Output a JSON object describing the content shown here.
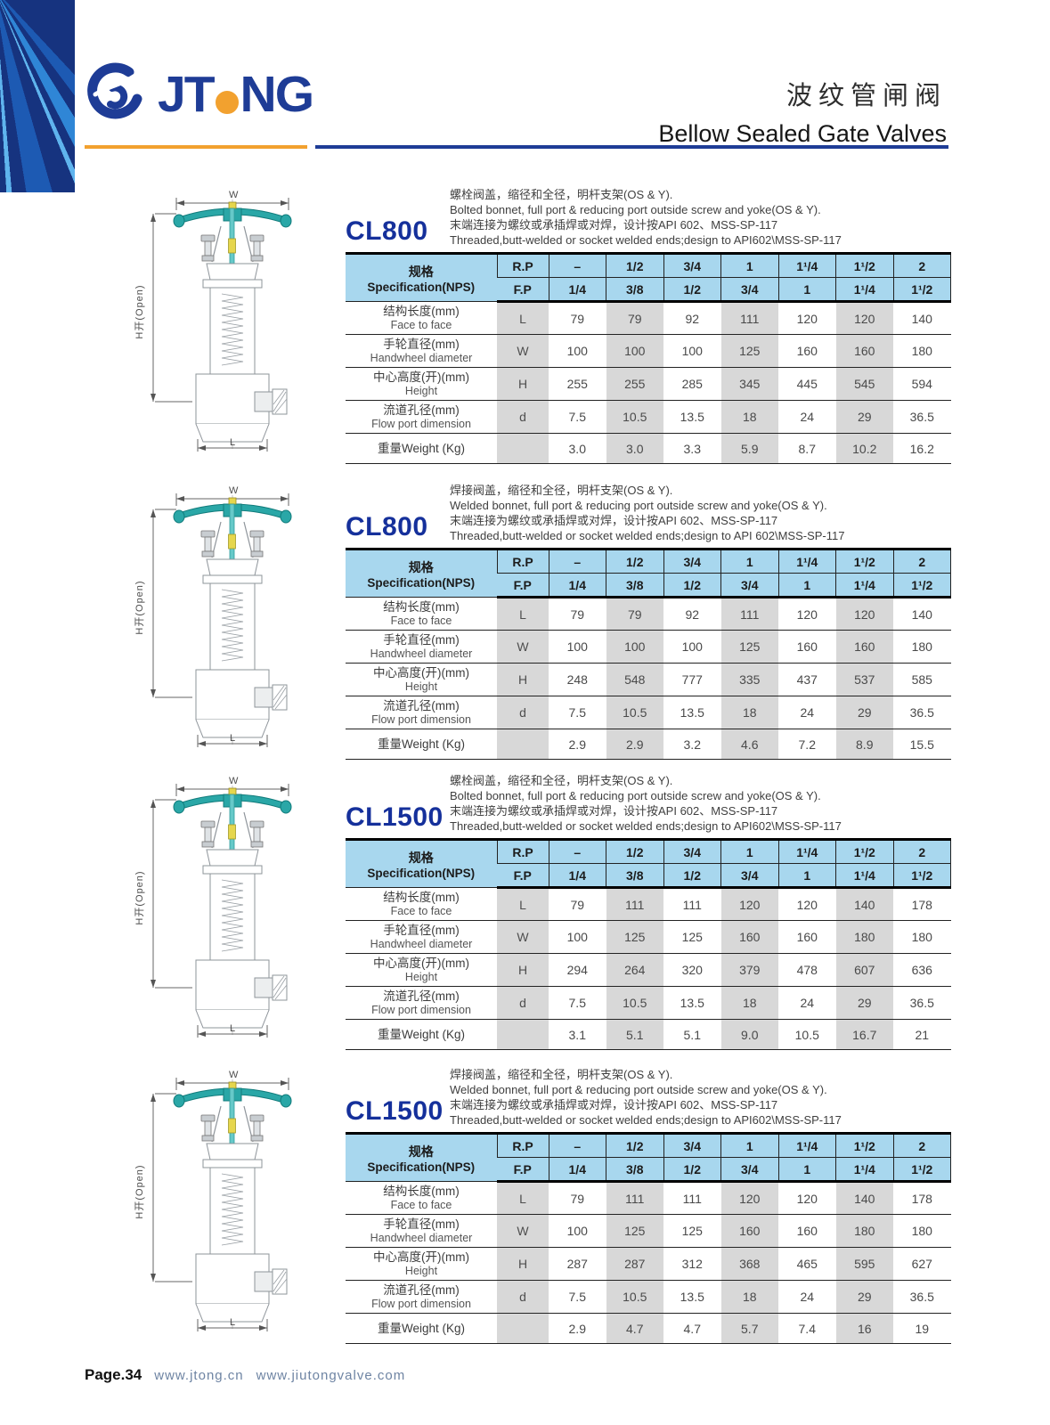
{
  "page": {
    "brand": "JTONG",
    "brand_left": "JT",
    "brand_right": "NG",
    "title_zh": "波纹管闸阀",
    "title_en": "Bellow Sealed Gate Valves",
    "footer": {
      "page_label": "Page.34",
      "url_1": "www.jtong.cn",
      "url_2": "www.jiutongvalve.com"
    }
  },
  "colors": {
    "brand_blue": "#1e3c96",
    "accent_orange": "#f2a12f",
    "table_header_blue": "#a8d7ee",
    "column_shade_gray": "#d8d8d8",
    "handwheel_teal": "#2aa7a7"
  },
  "diagram_labels": {
    "top": "W",
    "left": "H开(Open)",
    "bottom": "L"
  },
  "table_header": {
    "spec_label_zh": "规格",
    "spec_label_en": "Specification(NPS)",
    "rp_label": "R.P",
    "fp_label": "F.P",
    "rp_values": [
      "–",
      "1/2",
      "3/4",
      "1",
      "1¹/4",
      "1¹/2",
      "2"
    ],
    "fp_values": [
      "1/4",
      "3/8",
      "1/2",
      "3/4",
      "1",
      "1¹/4",
      "1¹/2"
    ]
  },
  "row_labels": [
    {
      "zh": "结构长度(mm)",
      "en": "Face to face",
      "sym": "L"
    },
    {
      "zh": "手轮直径(mm)",
      "en": "Handwheel diameter",
      "sym": "W"
    },
    {
      "zh": "中心高度(开)(mm)",
      "en": "Height",
      "sym": "H"
    },
    {
      "zh": "流道孔径(mm)",
      "en": "Flow port dimension",
      "sym": "d"
    },
    {
      "zh": "重量Weight (Kg)",
      "en": "",
      "sym": ""
    }
  ],
  "sections": [
    {
      "model": "CL800",
      "desc": [
        "螺栓阀盖，缩径和全径，明杆支架(OS & Y).",
        "Bolted bonnet, full port & reducing port outside screw and yoke(OS & Y).",
        "末端连接为螺纹或承插焊或对焊，设计按API 602、MSS-SP-117",
        "Threaded,butt-welded or socket welded ends;design to API602\\MSS-SP-117"
      ],
      "rows": [
        [
          "79",
          "79",
          "92",
          "111",
          "120",
          "120",
          "140"
        ],
        [
          "100",
          "100",
          "100",
          "125",
          "160",
          "160",
          "180"
        ],
        [
          "255",
          "255",
          "285",
          "345",
          "445",
          "545",
          "594"
        ],
        [
          "7.5",
          "10.5",
          "13.5",
          "18",
          "24",
          "29",
          "36.5"
        ],
        [
          "3.0",
          "3.0",
          "3.3",
          "5.9",
          "8.7",
          "10.2",
          "16.2"
        ]
      ]
    },
    {
      "model": "CL800",
      "desc": [
        "焊接阀盖，缩径和全径，明杆支架(OS & Y).",
        "Welded bonnet, full port & reducing port outside screw and yoke(OS & Y).",
        "末端连接为螺纹或承插焊或对焊，设计按API 602、MSS-SP-117",
        "Threaded,butt-welded or socket welded ends;design to API 602\\MSS-SP-117"
      ],
      "rows": [
        [
          "79",
          "79",
          "92",
          "111",
          "120",
          "120",
          "140"
        ],
        [
          "100",
          "100",
          "100",
          "125",
          "160",
          "160",
          "180"
        ],
        [
          "248",
          "548",
          "777",
          "335",
          "437",
          "537",
          "585"
        ],
        [
          "7.5",
          "10.5",
          "13.5",
          "18",
          "24",
          "29",
          "36.5"
        ],
        [
          "2.9",
          "2.9",
          "3.2",
          "4.6",
          "7.2",
          "8.9",
          "15.5"
        ]
      ]
    },
    {
      "model": "CL1500",
      "desc": [
        "螺栓阀盖，缩径和全径，明杆支架(OS & Y).",
        "Bolted bonnet, full port & reducing port outside screw and yoke(OS & Y).",
        "末端连接为螺纹或承插焊或对焊，设计按API 602、MSS-SP-117",
        "Threaded,butt-welded or socket welded ends;design to API602\\MSS-SP-117"
      ],
      "rows": [
        [
          "79",
          "111",
          "111",
          "120",
          "120",
          "140",
          "178"
        ],
        [
          "100",
          "125",
          "125",
          "160",
          "160",
          "180",
          "180"
        ],
        [
          "294",
          "264",
          "320",
          "379",
          "478",
          "607",
          "636"
        ],
        [
          "7.5",
          "10.5",
          "13.5",
          "18",
          "24",
          "29",
          "36.5"
        ],
        [
          "3.1",
          "5.1",
          "5.1",
          "9.0",
          "10.5",
          "16.7",
          "21"
        ]
      ]
    },
    {
      "model": "CL1500",
      "desc": [
        "焊接阀盖，缩径和全径，明杆支架(OS & Y).",
        "Welded bonnet, full port & reducing port outside screw and yoke(OS & Y).",
        "末端连接为螺纹或承插焊或对焊，设计按API 602、MSS-SP-117",
        "Threaded,butt-welded or socket welded ends;design to API602\\MSS-SP-117"
      ],
      "rows": [
        [
          "79",
          "111",
          "111",
          "120",
          "120",
          "140",
          "178"
        ],
        [
          "100",
          "125",
          "125",
          "160",
          "160",
          "180",
          "180"
        ],
        [
          "287",
          "287",
          "312",
          "368",
          "465",
          "595",
          "627"
        ],
        [
          "7.5",
          "10.5",
          "13.5",
          "18",
          "24",
          "29",
          "36.5"
        ],
        [
          "2.9",
          "4.7",
          "4.7",
          "5.7",
          "7.4",
          "16",
          "19"
        ]
      ]
    }
  ]
}
